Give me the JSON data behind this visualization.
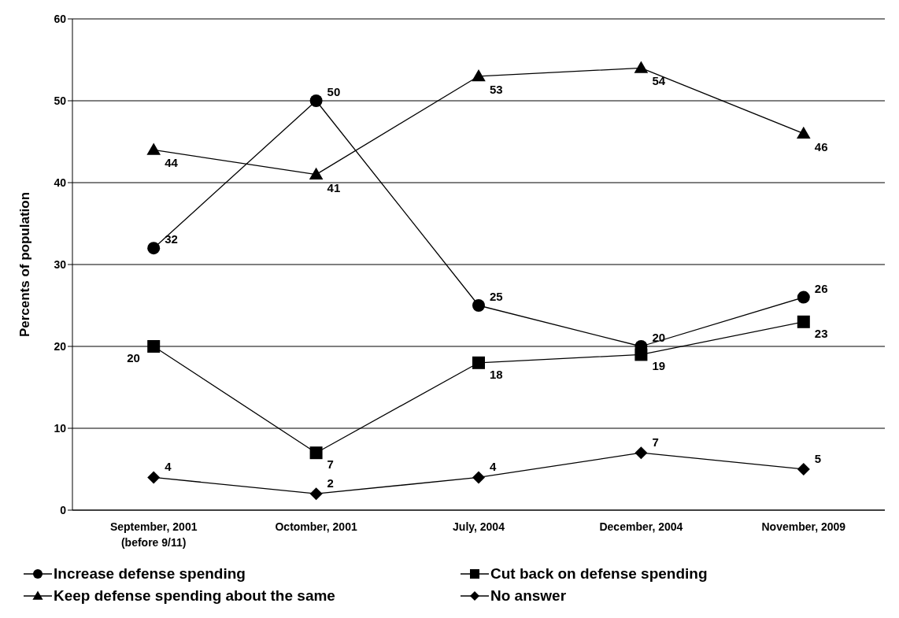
{
  "chart_data": {
    "type": "line",
    "ylabel": "Percents of population",
    "categories": [
      "September, 2001\n(before 9/11)",
      "Octomber, 2001",
      "July, 2004",
      "December, 2004",
      "November, 2009"
    ],
    "series": [
      {
        "name": "Increase defense spending",
        "color": "#000000",
        "marker": "circle",
        "values": [
          32,
          50,
          25,
          20,
          26
        ]
      },
      {
        "name": "Cut back on defense spending",
        "color": "#000000",
        "marker": "square",
        "values": [
          20,
          7,
          18,
          19,
          23
        ]
      },
      {
        "name": "Keep defense spending about the same",
        "color": "#000000",
        "marker": "triangle",
        "values": [
          44,
          41,
          53,
          54,
          46
        ]
      },
      {
        "name": "No answer",
        "color": "#000000",
        "marker": "diamond",
        "values": [
          4,
          2,
          4,
          7,
          5
        ]
      }
    ],
    "ylim": [
      0,
      60
    ],
    "yticks": [
      0,
      10,
      20,
      30,
      40,
      50,
      60
    ],
    "grid": "y",
    "legend": "bottom",
    "data_labels": true,
    "line_style": "solid"
  }
}
